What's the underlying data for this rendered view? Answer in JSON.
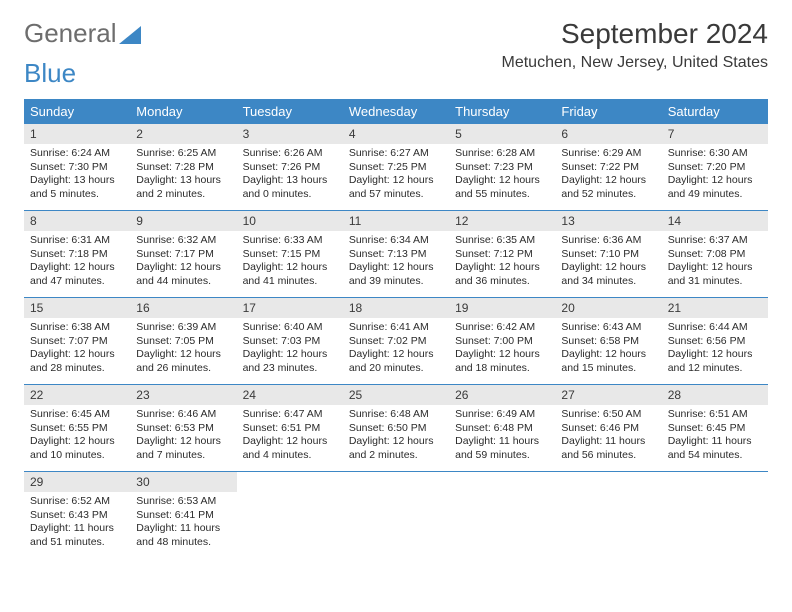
{
  "logo": {
    "text1": "General",
    "text2": "Blue"
  },
  "title": "September 2024",
  "location": "Metuchen, New Jersey, United States",
  "colors": {
    "header_bg": "#3d87c5",
    "header_text": "#ffffff",
    "daynum_bg": "#e8e8e8",
    "border": "#3d87c5",
    "text": "#2b2b2b"
  },
  "weekdays": [
    "Sunday",
    "Monday",
    "Tuesday",
    "Wednesday",
    "Thursday",
    "Friday",
    "Saturday"
  ],
  "days": [
    {
      "n": "1",
      "sr": "6:24 AM",
      "ss": "7:30 PM",
      "dl": "13 hours and 5 minutes."
    },
    {
      "n": "2",
      "sr": "6:25 AM",
      "ss": "7:28 PM",
      "dl": "13 hours and 2 minutes."
    },
    {
      "n": "3",
      "sr": "6:26 AM",
      "ss": "7:26 PM",
      "dl": "13 hours and 0 minutes."
    },
    {
      "n": "4",
      "sr": "6:27 AM",
      "ss": "7:25 PM",
      "dl": "12 hours and 57 minutes."
    },
    {
      "n": "5",
      "sr": "6:28 AM",
      "ss": "7:23 PM",
      "dl": "12 hours and 55 minutes."
    },
    {
      "n": "6",
      "sr": "6:29 AM",
      "ss": "7:22 PM",
      "dl": "12 hours and 52 minutes."
    },
    {
      "n": "7",
      "sr": "6:30 AM",
      "ss": "7:20 PM",
      "dl": "12 hours and 49 minutes."
    },
    {
      "n": "8",
      "sr": "6:31 AM",
      "ss": "7:18 PM",
      "dl": "12 hours and 47 minutes."
    },
    {
      "n": "9",
      "sr": "6:32 AM",
      "ss": "7:17 PM",
      "dl": "12 hours and 44 minutes."
    },
    {
      "n": "10",
      "sr": "6:33 AM",
      "ss": "7:15 PM",
      "dl": "12 hours and 41 minutes."
    },
    {
      "n": "11",
      "sr": "6:34 AM",
      "ss": "7:13 PM",
      "dl": "12 hours and 39 minutes."
    },
    {
      "n": "12",
      "sr": "6:35 AM",
      "ss": "7:12 PM",
      "dl": "12 hours and 36 minutes."
    },
    {
      "n": "13",
      "sr": "6:36 AM",
      "ss": "7:10 PM",
      "dl": "12 hours and 34 minutes."
    },
    {
      "n": "14",
      "sr": "6:37 AM",
      "ss": "7:08 PM",
      "dl": "12 hours and 31 minutes."
    },
    {
      "n": "15",
      "sr": "6:38 AM",
      "ss": "7:07 PM",
      "dl": "12 hours and 28 minutes."
    },
    {
      "n": "16",
      "sr": "6:39 AM",
      "ss": "7:05 PM",
      "dl": "12 hours and 26 minutes."
    },
    {
      "n": "17",
      "sr": "6:40 AM",
      "ss": "7:03 PM",
      "dl": "12 hours and 23 minutes."
    },
    {
      "n": "18",
      "sr": "6:41 AM",
      "ss": "7:02 PM",
      "dl": "12 hours and 20 minutes."
    },
    {
      "n": "19",
      "sr": "6:42 AM",
      "ss": "7:00 PM",
      "dl": "12 hours and 18 minutes."
    },
    {
      "n": "20",
      "sr": "6:43 AM",
      "ss": "6:58 PM",
      "dl": "12 hours and 15 minutes."
    },
    {
      "n": "21",
      "sr": "6:44 AM",
      "ss": "6:56 PM",
      "dl": "12 hours and 12 minutes."
    },
    {
      "n": "22",
      "sr": "6:45 AM",
      "ss": "6:55 PM",
      "dl": "12 hours and 10 minutes."
    },
    {
      "n": "23",
      "sr": "6:46 AM",
      "ss": "6:53 PM",
      "dl": "12 hours and 7 minutes."
    },
    {
      "n": "24",
      "sr": "6:47 AM",
      "ss": "6:51 PM",
      "dl": "12 hours and 4 minutes."
    },
    {
      "n": "25",
      "sr": "6:48 AM",
      "ss": "6:50 PM",
      "dl": "12 hours and 2 minutes."
    },
    {
      "n": "26",
      "sr": "6:49 AM",
      "ss": "6:48 PM",
      "dl": "11 hours and 59 minutes."
    },
    {
      "n": "27",
      "sr": "6:50 AM",
      "ss": "6:46 PM",
      "dl": "11 hours and 56 minutes."
    },
    {
      "n": "28",
      "sr": "6:51 AM",
      "ss": "6:45 PM",
      "dl": "11 hours and 54 minutes."
    },
    {
      "n": "29",
      "sr": "6:52 AM",
      "ss": "6:43 PM",
      "dl": "11 hours and 51 minutes."
    },
    {
      "n": "30",
      "sr": "6:53 AM",
      "ss": "6:41 PM",
      "dl": "11 hours and 48 minutes."
    }
  ],
  "labels": {
    "sunrise": "Sunrise:",
    "sunset": "Sunset:",
    "daylight": "Daylight:"
  }
}
